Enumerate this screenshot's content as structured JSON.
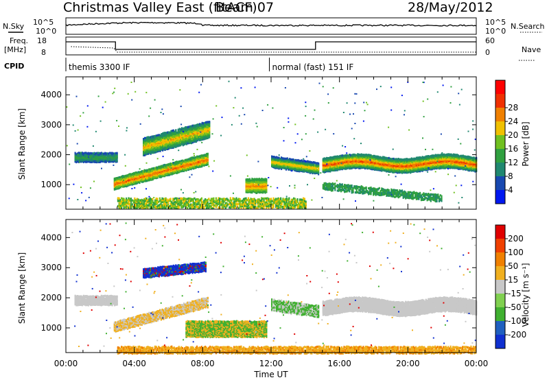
{
  "header": {
    "title": "Christmas Valley East (fitACF)",
    "beam": "Beam 07",
    "date": "28/May/2012"
  },
  "param_panel": {
    "nsky_label": "N.Sky",
    "nsky_ticks": [
      "10^5",
      "10^0"
    ],
    "nsearch_label": "N.Search",
    "freq_label_1": "Freq.",
    "freq_label_2": "[MHz]",
    "freq_ticks": [
      "18",
      "8"
    ],
    "nave_ticks": [
      "60",
      "0"
    ],
    "nave_label": "Nave",
    "cpid_label": "CPID",
    "cpid_segments": [
      {
        "name": "themis 3300 IF",
        "start_hour": 0.0,
        "end_hour": 11.9
      },
      {
        "name": "normal (fast) 151 IF",
        "start_hour": 11.9,
        "end_hour": 24.0
      }
    ]
  },
  "chart_data": [
    {
      "type": "heatmap",
      "name": "power-panel",
      "ylabel": "Slant Range [km]",
      "ylim": [
        180,
        4600
      ],
      "y_ticks": [
        1000,
        2000,
        3000,
        4000
      ],
      "x_ticks": [
        "00:00",
        "04:00",
        "08:00",
        "12:00",
        "16:00",
        "20:00",
        "00:00"
      ],
      "xlim_hours": [
        0,
        24
      ],
      "colorbar": {
        "label": "Power [dB]",
        "ticks": [
          "4",
          "8",
          "12",
          "16",
          "20",
          "24",
          "28"
        ],
        "levels": [
          0,
          4,
          8,
          12,
          16,
          20,
          24,
          28,
          32
        ],
        "colors": [
          "#0018f0",
          "#1848b0",
          "#208870",
          "#30a040",
          "#70c020",
          "#f0c000",
          "#f08000",
          "#f03000",
          "#ff0000"
        ]
      }
    },
    {
      "type": "heatmap",
      "name": "velocity-panel",
      "ylabel": "Slant Range [km]",
      "xlabel": "Time UT",
      "ylim": [
        180,
        4600
      ],
      "y_ticks": [
        1000,
        2000,
        3000,
        4000
      ],
      "x_ticks": [
        "00:00",
        "04:00",
        "08:00",
        "12:00",
        "16:00",
        "20:00",
        "00:00"
      ],
      "xlim_hours": [
        0,
        24
      ],
      "colorbar": {
        "label": "Velocity [m s⁻¹]",
        "ticks": [
          "200",
          "100",
          "50",
          "15",
          "-15",
          "-50",
          "-100",
          "-200"
        ],
        "colors": [
          "#1030d0",
          "#2060c0",
          "#40b030",
          "#80d050",
          "#c8c8c8",
          "#f0b020",
          "#f08000",
          "#f04000",
          "#e00000"
        ]
      }
    }
  ],
  "colors": {
    "axes": "#000000",
    "ground_scatter": "#c0c0c0"
  }
}
